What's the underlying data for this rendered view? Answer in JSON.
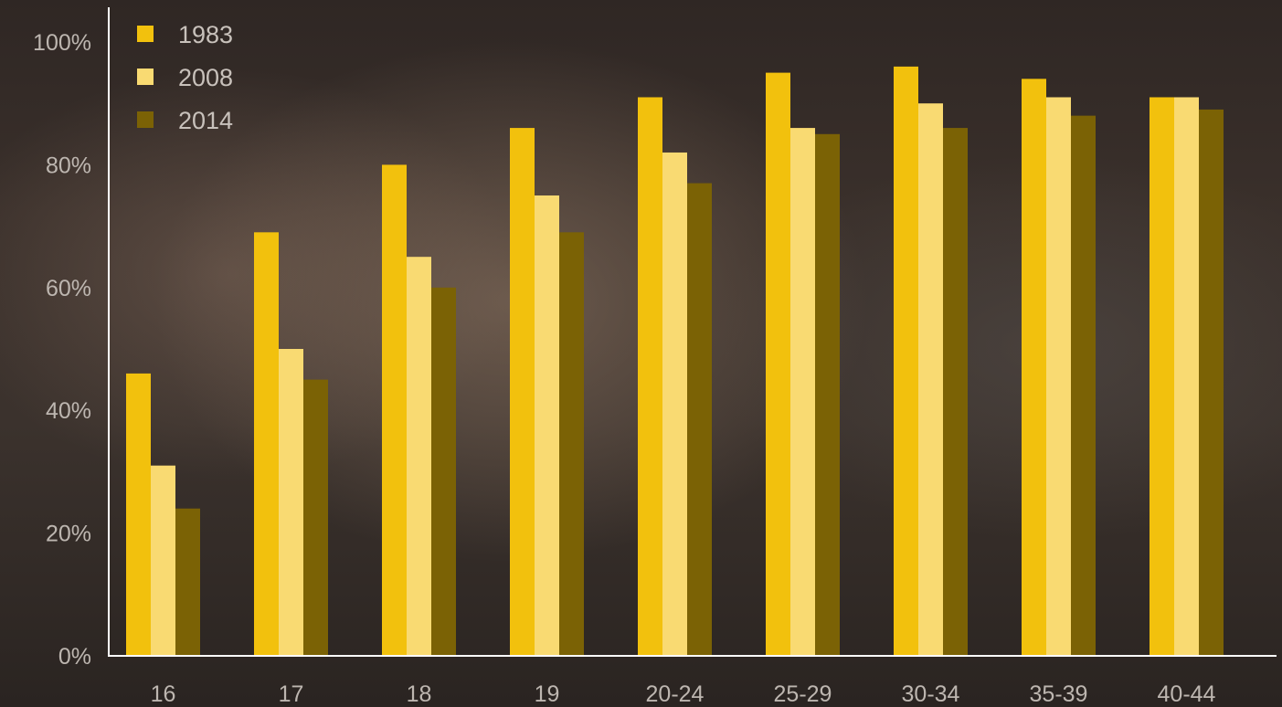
{
  "chart_data": {
    "type": "bar",
    "categories": [
      "16",
      "17",
      "18",
      "19",
      "20-24",
      "25-29",
      "30-34",
      "35-39",
      "40-44"
    ],
    "series": [
      {
        "name": "1983",
        "color": "#f2c10d",
        "values": [
          46,
          69,
          80,
          86,
          91,
          95,
          96,
          94,
          91
        ]
      },
      {
        "name": "2008",
        "color": "#f9da72",
        "values": [
          31,
          50,
          65,
          75,
          82,
          86,
          90,
          91,
          91
        ]
      },
      {
        "name": "2014",
        "color": "#7b6205",
        "values": [
          24,
          45,
          60,
          69,
          77,
          85,
          86,
          88,
          89
        ]
      }
    ],
    "ylim": [
      0,
      100
    ],
    "yticks": [
      "0%",
      "20%",
      "40%",
      "60%",
      "80%",
      "100%"
    ],
    "ytick_values": [
      0,
      20,
      40,
      60,
      80,
      100
    ],
    "xlabel": "",
    "ylabel": "",
    "title": "",
    "grid": false,
    "legend_position": "top-left"
  }
}
